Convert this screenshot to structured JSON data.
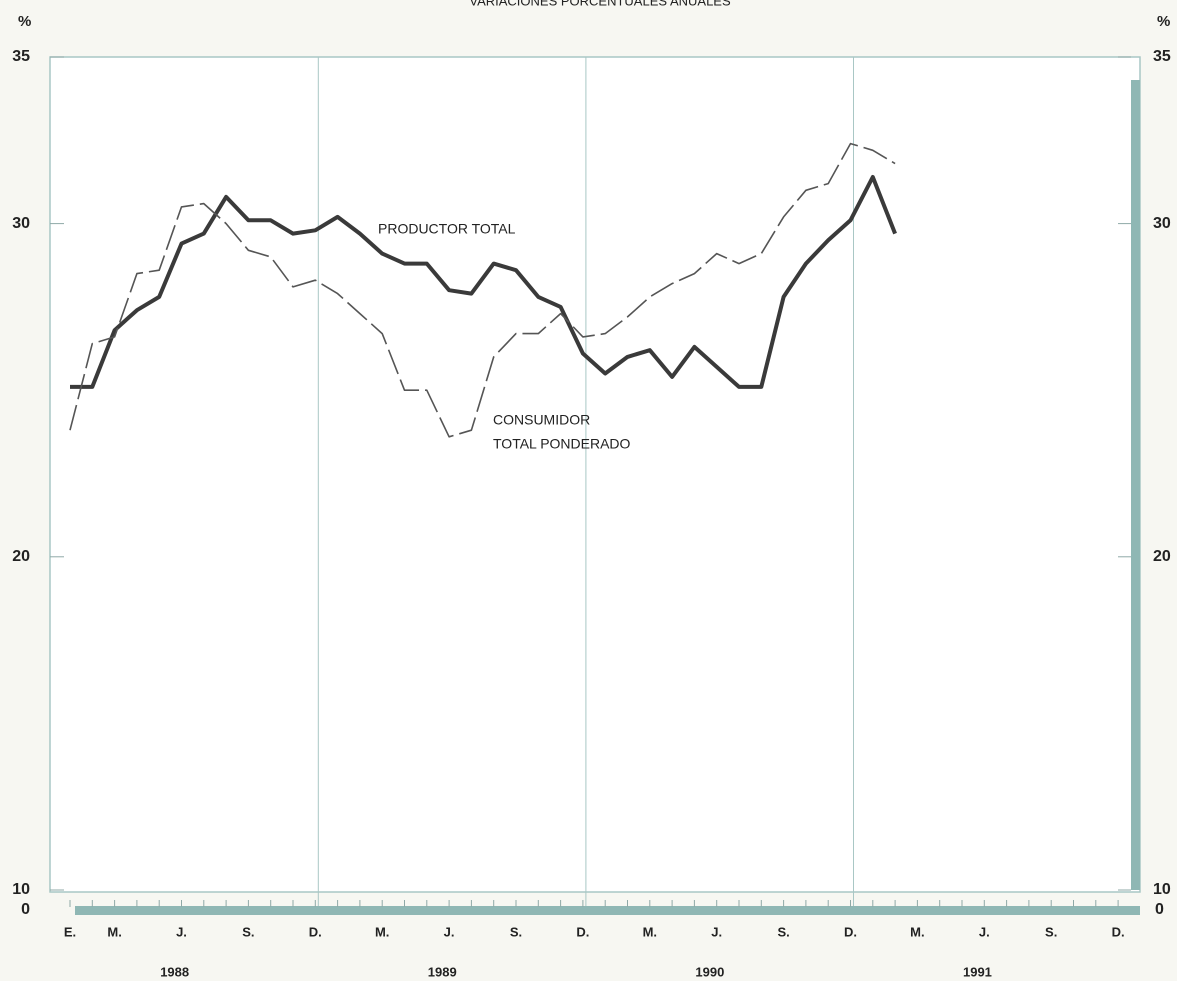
{
  "chart_data": {
    "type": "line",
    "title": "VARIACIONES PORCENTUALES ANUALES",
    "unit_label": "%",
    "y_break_label": "0",
    "ylim": [
      10,
      35
    ],
    "yticks": [
      10,
      20,
      30,
      35
    ],
    "categories": [
      "E.",
      null,
      "M.",
      null,
      null,
      "J.",
      null,
      null,
      "S.",
      null,
      null,
      "D.",
      null,
      null,
      "M.",
      null,
      null,
      "J.",
      null,
      null,
      "S.",
      null,
      null,
      "D.",
      null,
      null,
      "M.",
      null,
      null,
      "J.",
      null,
      null,
      "S.",
      null,
      null,
      "D.",
      null,
      null,
      "M.",
      null,
      null,
      "J.",
      null,
      null,
      "S.",
      null,
      null,
      "D."
    ],
    "years": [
      "1988",
      "1989",
      "1990",
      "1991"
    ],
    "series": [
      {
        "color": "#3a3a3a",
        "style": "solid",
        "values": [
          25.1,
          25.1,
          26.8,
          27.4,
          27.8,
          29.4,
          29.7,
          30.8,
          30.1,
          30.1,
          29.7,
          29.8,
          30.2,
          29.7,
          29.1,
          28.8,
          28.8,
          28.0,
          27.9,
          28.8,
          28.6,
          27.8,
          27.5,
          26.1,
          25.5,
          26.0,
          26.2,
          25.4,
          26.3,
          25.7,
          25.1,
          25.1,
          27.8,
          28.8,
          29.5,
          30.1,
          31.4,
          29.7,
          null,
          null,
          null,
          null,
          null,
          null,
          null,
          null,
          null,
          null
        ]
      },
      {
        "color": "#555555",
        "style": "dashed",
        "values": [
          23.8,
          26.4,
          26.6,
          28.5,
          28.6,
          30.5,
          30.6,
          30.0,
          29.2,
          29.0,
          28.1,
          28.3,
          27.9,
          27.3,
          26.7,
          25.0,
          25.0,
          23.6,
          23.8,
          26.0,
          26.7,
          26.7,
          27.3,
          26.6,
          26.7,
          27.2,
          27.8,
          28.2,
          28.5,
          29.1,
          28.8,
          29.1,
          30.2,
          31.0,
          31.2,
          32.4,
          32.2,
          31.8,
          null,
          null,
          null,
          null,
          null,
          null,
          null,
          null,
          null,
          null
        ]
      }
    ],
    "annotations": [
      {
        "text": "PRODUCTOR TOTAL",
        "series": 0
      },
      {
        "text": "CONSUMIDOR",
        "series": 1
      },
      {
        "text": "TOTAL PONDERADO",
        "series": 1
      }
    ]
  }
}
